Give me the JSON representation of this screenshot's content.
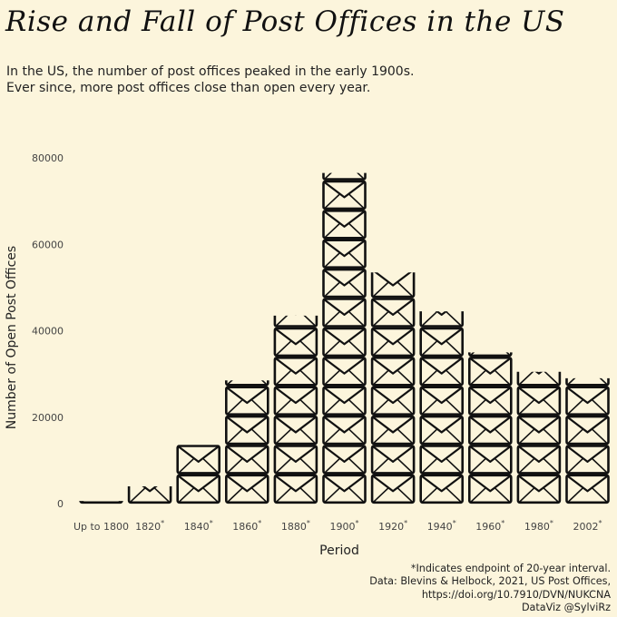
{
  "header": {
    "title": "Rise and Fall of Post Offices in the US",
    "subtitle_line1": "In the US, the number of post offices peaked in the early 1900s.",
    "subtitle_line2": "Ever since, more post offices close than open every year."
  },
  "footnote": {
    "line1": "*Indicates endpoint of 20-year interval.",
    "line2": "Data: Blevins & Helbock, 2021, US Post Offices,",
    "line3": "https://doi.org/10.7910/DVN/NUKCNA",
    "line4": "DataViz @SylviRz"
  },
  "chart_data": {
    "type": "bar",
    "icon": "envelope-icon",
    "icon_unit": 6800,
    "xlabel": "Period",
    "ylabel": "Number of Open Post Offices",
    "ylim": [
      0,
      80000
    ],
    "yticks": [
      0,
      20000,
      40000,
      60000,
      80000
    ],
    "grid": false,
    "categories": [
      "Up to 1800",
      "1820*",
      "1840*",
      "1860*",
      "1880*",
      "1900*",
      "1920*",
      "1940*",
      "1960*",
      "1980*",
      "2002*"
    ],
    "values": [
      600,
      4000,
      13600,
      28500,
      43500,
      76500,
      53500,
      44500,
      35000,
      30500,
      29000
    ],
    "colors": {
      "background": "#fcf5dc",
      "ink": "#111111"
    }
  }
}
